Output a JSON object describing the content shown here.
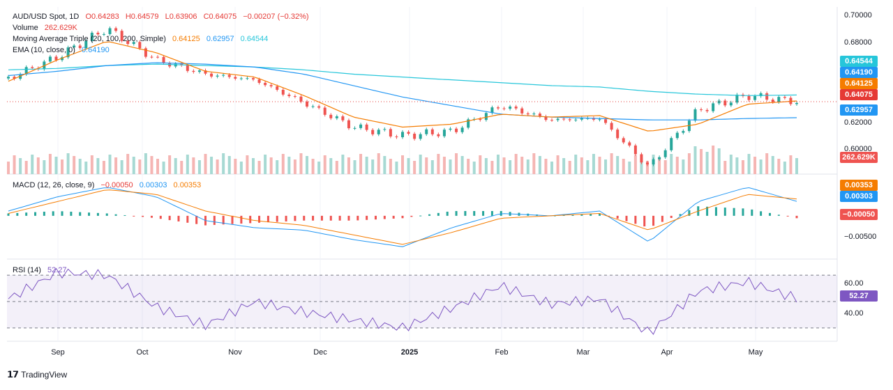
{
  "header": {
    "symbol": "AUD/USD Spot, 1D",
    "open": "O0.64283",
    "high": "H0.64579",
    "low": "L0.63906",
    "close": "C0.64075",
    "change": "−0.00207 (−0.32%)",
    "volume_label": "Volume",
    "volume_value": "262.629K",
    "ma_label": "Moving Average Triple (20, 100, 200, Simple)",
    "ma_values": [
      "0.64125",
      "0.62957",
      "0.64544"
    ],
    "ema_label": "EMA (10, close, 0)",
    "ema_value": "0.64190"
  },
  "price_axis": {
    "ticks": [
      "0.70000",
      "0.68000",
      "0.62000",
      "0.60000"
    ],
    "badges": [
      {
        "label": "0.64544",
        "color": "#26c6da"
      },
      {
        "label": "0.64190",
        "color": "#2196f3"
      },
      {
        "label": "0.64125",
        "color": "#f57c00"
      },
      {
        "label": "0.64075",
        "color": "#e53935"
      },
      {
        "label": "0.62957",
        "color": "#2196f3"
      },
      {
        "label": "262.629K",
        "color": "#ef5350"
      }
    ]
  },
  "macd": {
    "label": "MACD (12, 26, close, 9)",
    "values": [
      "−0.00050",
      "0.00303",
      "0.00353"
    ],
    "value_colors": [
      "#e53935",
      "#2196f3",
      "#f57c00"
    ],
    "ticks": [
      "−0.00500"
    ],
    "badges": [
      {
        "label": "0.00353",
        "color": "#f57c00"
      },
      {
        "label": "0.00303",
        "color": "#2196f3"
      },
      {
        "label": "−0.00050",
        "color": "#ef5350"
      }
    ]
  },
  "rsi": {
    "label": "RSI (14)",
    "value": "52.27",
    "ticks": [
      "60.00",
      "40.00"
    ],
    "badge": {
      "label": "52.27",
      "color": "#7e57c2"
    }
  },
  "x_axis": {
    "labels": [
      "Sep",
      "Oct",
      "Nov",
      "Dec",
      "2025",
      "Feb",
      "Mar",
      "Apr",
      "May"
    ]
  },
  "brand": "TradingView",
  "colors": {
    "up": "#26a69a",
    "down": "#ef5350",
    "ma20": "#f57c00",
    "ma100": "#2196f3",
    "ma200": "#26c6da",
    "ema": "#2196f3",
    "rsi": "#7e57c2"
  },
  "chart_data": {
    "type": "candlestick",
    "title": "AUD/USD Spot, 1D",
    "ylim": [
      0.595,
      0.705
    ],
    "key_points": {
      "dates": [
        "Aug 12",
        "Sep 3",
        "Sep 30",
        "Oct 10",
        "Nov 5",
        "Nov 12",
        "Dec 3",
        "Dec 20",
        "Jan 10",
        "Feb 3",
        "Feb 21",
        "Mar 10",
        "Apr 4",
        "Apr 9",
        "Apr 22",
        "May 6",
        "May 15"
      ],
      "close": [
        0.657,
        0.672,
        0.692,
        0.67,
        0.66,
        0.656,
        0.64,
        0.623,
        0.617,
        0.62,
        0.638,
        0.628,
        0.629,
        0.595,
        0.635,
        0.645,
        0.64075
      ]
    },
    "ma20": [
      0.655,
      0.67,
      0.683,
      0.675,
      0.662,
      0.658,
      0.645,
      0.63,
      0.623,
      0.625,
      0.632,
      0.63,
      0.631,
      0.62,
      0.625,
      0.639,
      0.64125
    ],
    "ma100": [
      0.659,
      0.662,
      0.666,
      0.668,
      0.667,
      0.665,
      0.66,
      0.652,
      0.644,
      0.638,
      0.632,
      0.63,
      0.629,
      0.628,
      0.628,
      0.629,
      0.62957
    ],
    "ma200": [
      0.663,
      0.664,
      0.666,
      0.667,
      0.666,
      0.665,
      0.663,
      0.66,
      0.658,
      0.656,
      0.654,
      0.652,
      0.651,
      0.648,
      0.646,
      0.645,
      0.64544
    ],
    "macd_ylim": [
      -0.0085,
      0.007
    ],
    "macd_line": [
      0.001,
      0.004,
      0.006,
      0.004,
      -0.001,
      -0.0025,
      -0.003,
      -0.005,
      -0.0065,
      -0.0025,
      0.0005,
      0.0,
      0.001,
      -0.0055,
      0.003,
      0.006,
      0.00303
    ],
    "macd_signal": [
      0.0005,
      0.003,
      0.0055,
      0.0045,
      0.001,
      -0.001,
      -0.002,
      -0.004,
      -0.006,
      -0.0035,
      -0.0005,
      0.0,
      0.0005,
      -0.003,
      0.001,
      0.0045,
      0.00353
    ],
    "rsi_ylim": [
      22,
      78
    ],
    "rsi_values": [
      52,
      72,
      70,
      46,
      32,
      50,
      42,
      36,
      30,
      45,
      62,
      48,
      52,
      26,
      58,
      65,
      52.27
    ]
  }
}
